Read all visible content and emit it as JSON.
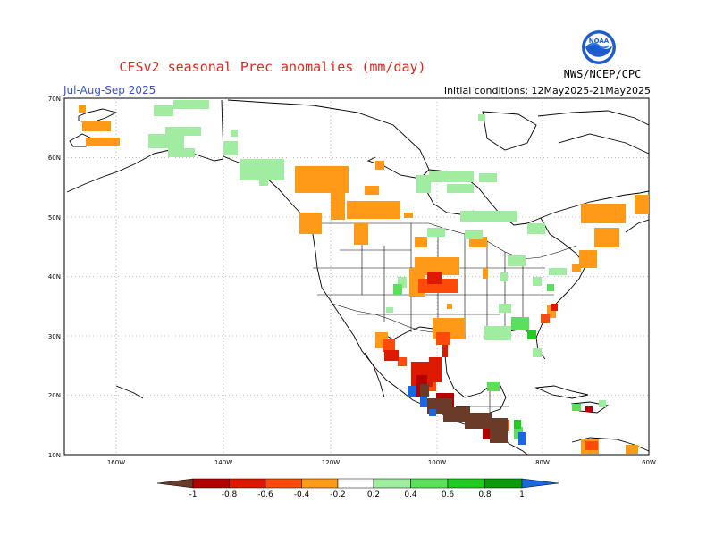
{
  "title": "CFSv2 seasonal Prec anomalies (mm/day)",
  "period": "Jul-Aug-Sep 2025",
  "initial_conditions": "Initial conditions: 12May2025-21May2025",
  "agency": "NWS/NCEP/CPC",
  "logo_text": "NOAA",
  "lat_labels": [
    "70N",
    "60N",
    "50N",
    "40N",
    "30N",
    "20N",
    "10N"
  ],
  "lon_labels": [
    "160W",
    "140W",
    "120W",
    "100W",
    "80W",
    "60W"
  ],
  "colorbar_labels": [
    "-1",
    "-0.8",
    "-0.6",
    "-0.4",
    "-0.2",
    "0.2",
    "0.4",
    "0.6",
    "0.8",
    "1"
  ],
  "colors": {
    "lt_neg1": "#6b3b2a",
    "neg1_to_neg08": "#b30000",
    "neg08_to_neg06": "#dd1a00",
    "neg06_to_neg04": "#ff4a0a",
    "neg04_to_neg02": "#ff9a18",
    "pos02_to_pos04": "#a0eca0",
    "pos04_to_pos06": "#5ae05a",
    "pos06_to_pos08": "#21cc21",
    "pos08_to_pos1": "#0a9a0a",
    "gt_pos1": "#1a68e0"
  }
}
